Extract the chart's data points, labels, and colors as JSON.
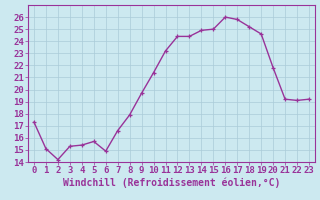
{
  "x": [
    0,
    1,
    2,
    3,
    4,
    5,
    6,
    7,
    8,
    9,
    10,
    11,
    12,
    13,
    14,
    15,
    16,
    17,
    18,
    19,
    20,
    21,
    22,
    23
  ],
  "y": [
    17.3,
    15.1,
    14.2,
    15.3,
    15.4,
    15.7,
    14.9,
    16.6,
    17.9,
    19.7,
    21.4,
    23.2,
    24.4,
    24.4,
    24.9,
    25.0,
    26.0,
    25.8,
    25.2,
    24.6,
    21.8,
    19.2,
    19.1,
    19.2
  ],
  "line_color": "#993399",
  "marker": "+",
  "markersize": 3.5,
  "linewidth": 1.0,
  "xlabel": "Windchill (Refroidissement éolien,°C)",
  "xlabel_fontsize": 7,
  "ylim": [
    14,
    27
  ],
  "xlim": [
    -0.5,
    23.5
  ],
  "yticks": [
    14,
    15,
    16,
    17,
    18,
    19,
    20,
    21,
    22,
    23,
    24,
    25,
    26
  ],
  "xticks": [
    0,
    1,
    2,
    3,
    4,
    5,
    6,
    7,
    8,
    9,
    10,
    11,
    12,
    13,
    14,
    15,
    16,
    17,
    18,
    19,
    20,
    21,
    22,
    23
  ],
  "bg_color": "#cce9f0",
  "grid_color": "#aaccd8",
  "line_spine_color": "#993399",
  "tick_fontsize": 6.5
}
